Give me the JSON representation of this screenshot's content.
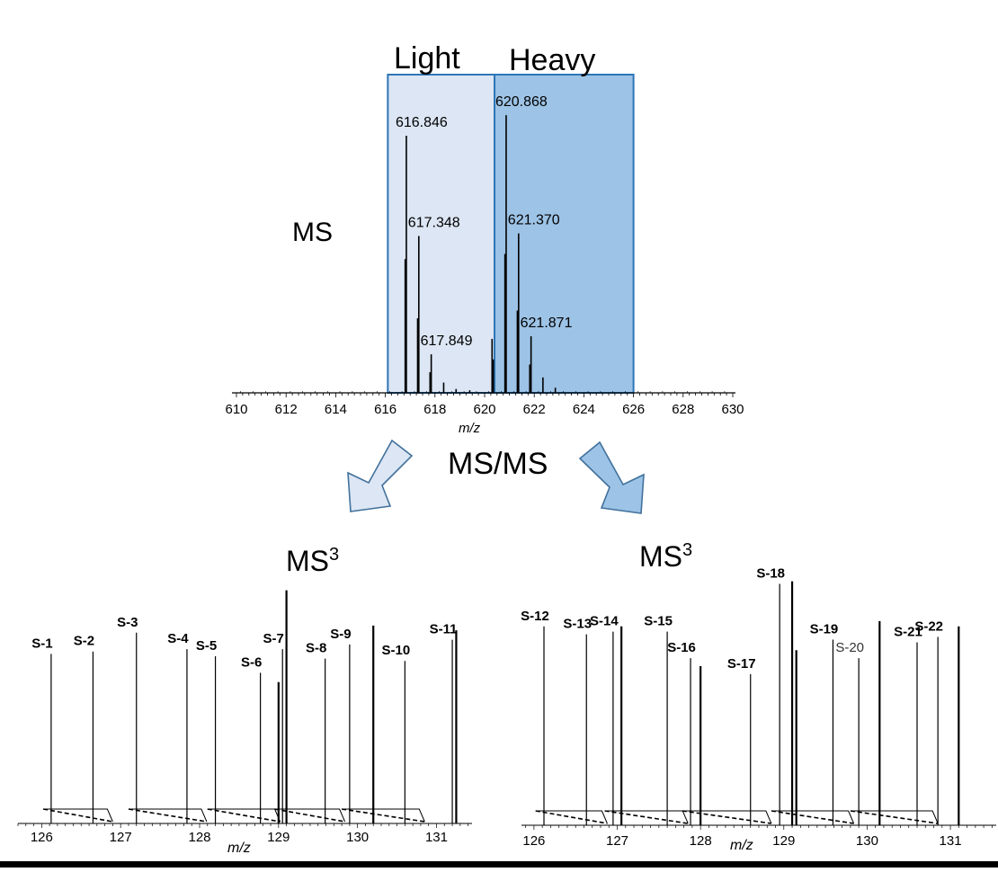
{
  "labels": {
    "light": "Light",
    "heavy": "Heavy",
    "ms": "MS",
    "msms": "MS/MS",
    "ms3_base": "MS",
    "ms3_sup": "3",
    "mz": "m/z"
  },
  "colors": {
    "light_fill": "#dce6f4",
    "heavy_fill": "#9dc3e6",
    "box_border": "#2e75b6",
    "arrow_stroke": "#41719c",
    "light_arrow_fill": "#dce6f4",
    "heavy_arrow_fill": "#9dc3e6",
    "ink": "#000000"
  },
  "chart_data": [
    {
      "name": "ms1",
      "type": "stick-spectrum",
      "xlabel": "m/z",
      "xlim": [
        610,
        630
      ],
      "xticks": [
        610,
        612,
        614,
        616,
        618,
        620,
        622,
        624,
        626,
        628,
        630
      ],
      "windows": [
        {
          "label": "Light",
          "range": [
            616.1,
            620.4
          ]
        },
        {
          "label": "Heavy",
          "range": [
            620.4,
            626.0
          ]
        }
      ],
      "peaks": [
        {
          "mz": 616.846,
          "intensity": 1.0,
          "label": "616.846"
        },
        {
          "mz": 616.8,
          "intensity": 0.52
        },
        {
          "mz": 617.348,
          "intensity": 0.61,
          "label": "617.348"
        },
        {
          "mz": 617.3,
          "intensity": 0.29
        },
        {
          "mz": 617.849,
          "intensity": 0.15,
          "label": "617.849"
        },
        {
          "mz": 617.8,
          "intensity": 0.08
        },
        {
          "mz": 618.35,
          "intensity": 0.04
        },
        {
          "mz": 618.85,
          "intensity": 0.015
        },
        {
          "mz": 619.4,
          "intensity": 0.01
        },
        {
          "mz": 620.3,
          "intensity": 0.21
        },
        {
          "mz": 620.35,
          "intensity": 0.13
        },
        {
          "mz": 620.868,
          "intensity": 1.08,
          "label": "620.868"
        },
        {
          "mz": 620.82,
          "intensity": 0.54
        },
        {
          "mz": 621.37,
          "intensity": 0.62,
          "label": "621.370"
        },
        {
          "mz": 621.32,
          "intensity": 0.32
        },
        {
          "mz": 621.871,
          "intensity": 0.22,
          "label": "621.871"
        },
        {
          "mz": 621.82,
          "intensity": 0.11
        },
        {
          "mz": 622.35,
          "intensity": 0.06
        },
        {
          "mz": 622.85,
          "intensity": 0.02
        }
      ]
    },
    {
      "name": "ms3-light",
      "type": "stick-spectrum",
      "title": "MS3",
      "xlabel": "m/z",
      "xlim": [
        125.7,
        131.45
      ],
      "xticks": [
        126,
        127,
        128,
        129,
        130,
        131
      ],
      "reporters": [
        {
          "label": "S-1",
          "mz": 126.12,
          "intensity": 0.72,
          "bold": true
        },
        {
          "label": "S-2",
          "mz": 126.65,
          "intensity": 0.73,
          "bold": true
        },
        {
          "label": "S-3",
          "mz": 127.2,
          "intensity": 0.81,
          "bold": true
        },
        {
          "label": "S-4",
          "mz": 127.84,
          "intensity": 0.74,
          "bold": true
        },
        {
          "label": "S-5",
          "mz": 128.2,
          "intensity": 0.71,
          "bold": true
        },
        {
          "label": "S-6",
          "mz": 128.77,
          "intensity": 0.64,
          "bold": true
        },
        {
          "label": "S-7",
          "mz": 129.05,
          "intensity": 0.74,
          "bold": true
        },
        {
          "label": "S-8",
          "mz": 129.59,
          "intensity": 0.7,
          "bold": true
        },
        {
          "label": "S-9",
          "mz": 129.9,
          "intensity": 0.76,
          "bold": true
        },
        {
          "label": "S-10",
          "mz": 130.6,
          "intensity": 0.69,
          "bold": true
        },
        {
          "label": "S-11",
          "mz": 131.2,
          "intensity": 0.78,
          "bold": true
        }
      ]
    },
    {
      "name": "ms3-heavy",
      "type": "stick-spectrum",
      "title": "MS3",
      "xlabel": "m/z",
      "xlim": [
        125.85,
        131.55
      ],
      "xticks": [
        126,
        127,
        128,
        129,
        130,
        131
      ],
      "reporters": [
        {
          "label": "S-12",
          "mz": 126.12,
          "intensity": 0.75,
          "bold": true
        },
        {
          "label": "S-13",
          "mz": 126.63,
          "intensity": 0.72,
          "bold": true
        },
        {
          "label": "S-14",
          "mz": 126.95,
          "intensity": 0.73,
          "bold": true
        },
        {
          "label": "S-15",
          "mz": 127.6,
          "intensity": 0.73,
          "bold": true
        },
        {
          "label": "S-16",
          "mz": 127.88,
          "intensity": 0.63,
          "bold": true
        },
        {
          "label": "S-17",
          "mz": 128.6,
          "intensity": 0.57,
          "bold": true
        },
        {
          "label": "S-18",
          "mz": 128.95,
          "intensity": 0.91,
          "bold": true
        },
        {
          "label": "S-19",
          "mz": 129.59,
          "intensity": 0.7,
          "bold": true
        },
        {
          "label": "S-20",
          "mz": 129.9,
          "intensity": 0.63,
          "bold": false
        },
        {
          "label": "S-21",
          "mz": 130.6,
          "intensity": 0.69,
          "bold": true
        },
        {
          "label": "S-22",
          "mz": 130.85,
          "intensity": 0.71,
          "bold": true
        }
      ]
    }
  ]
}
